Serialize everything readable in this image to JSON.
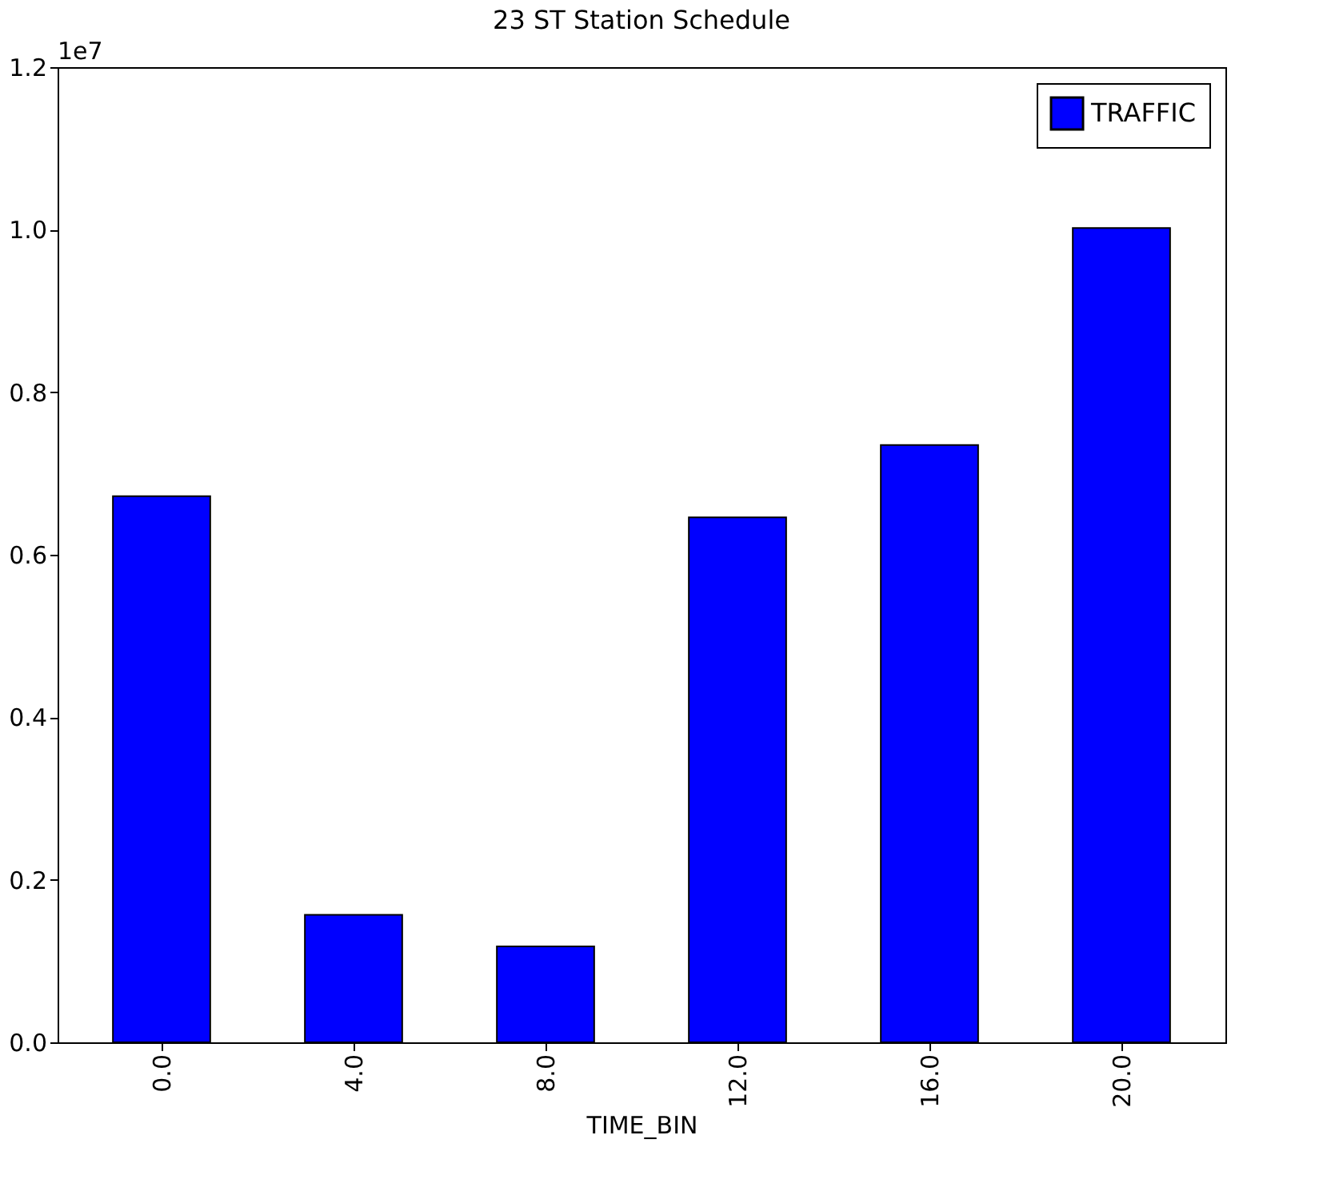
{
  "chart_data": {
    "type": "bar",
    "title": "23 ST Station Schedule",
    "xlabel": "TIME_BIN",
    "categories": [
      "0.0",
      "4.0",
      "8.0",
      "12.0",
      "16.0",
      "20.0"
    ],
    "series": [
      {
        "name": "TRAFFIC",
        "color": "#0000ff",
        "values": [
          0.672,
          0.157,
          0.118,
          0.646,
          0.735,
          1.002
        ]
      }
    ],
    "ylim": [
      0,
      1.2
    ],
    "yticks": [
      {
        "value": 0,
        "label": "0.0"
      },
      0.2,
      0.4,
      0.6,
      0.8,
      {
        "value": 1,
        "label": "1.0"
      },
      1.2
    ],
    "annotations": [
      "1e7"
    ],
    "legend": "top right",
    "grid": false
  }
}
